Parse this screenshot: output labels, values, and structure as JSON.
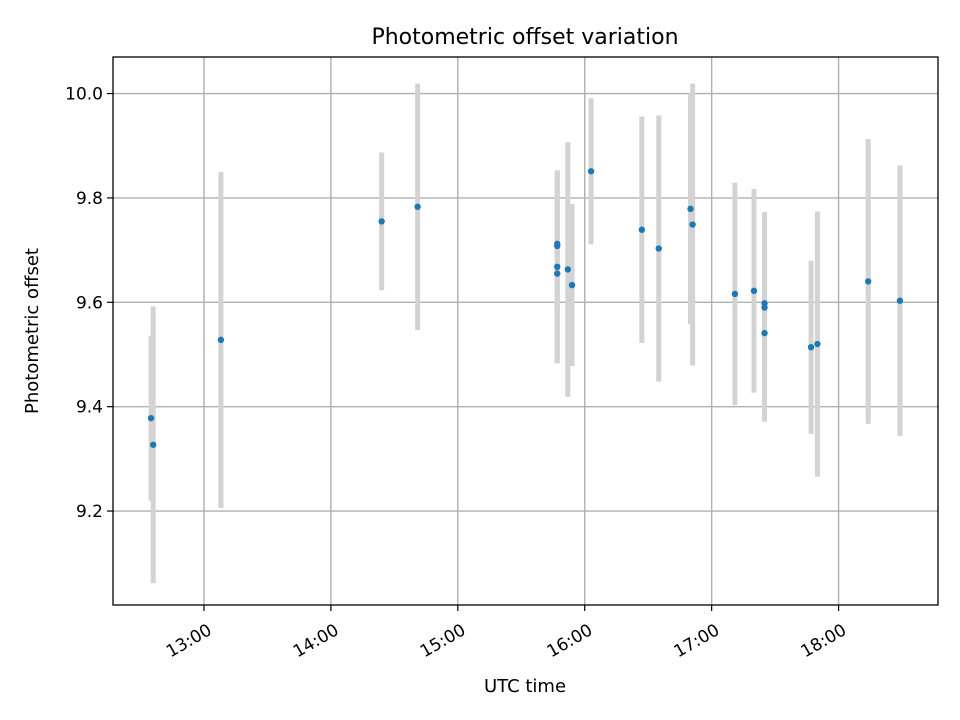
{
  "chart_data": {
    "type": "scatter",
    "title": "Photometric offset variation",
    "xlabel": "UTC time",
    "ylabel": "Photometric offset",
    "x_tick_labels": [
      "13:00",
      "14:00",
      "15:00",
      "16:00",
      "17:00",
      "18:00"
    ],
    "y_tick_labels": [
      "9.2",
      "9.4",
      "9.6",
      "9.8",
      "10.0"
    ],
    "xlim": [
      "12:17",
      "18:47"
    ],
    "ylim": [
      9.02,
      10.07
    ],
    "grid": true,
    "marker_color": "#1f77b4",
    "errorbar_color": "#d3d3d3",
    "points": [
      {
        "time": "12:35",
        "y": 9.378,
        "err": 0.158
      },
      {
        "time": "12:36",
        "y": 9.327,
        "err": 0.265
      },
      {
        "time": "13:08",
        "y": 9.528,
        "err": 0.322
      },
      {
        "time": "14:24",
        "y": 9.755,
        "err": 0.132
      },
      {
        "time": "14:41",
        "y": 9.783,
        "err": 0.236
      },
      {
        "time": "15:47",
        "y": 9.712,
        "err": 0.14
      },
      {
        "time": "15:47",
        "y": 9.708,
        "err": 0.1
      },
      {
        "time": "15:47",
        "y": 9.668,
        "err": 0.185
      },
      {
        "time": "15:47",
        "y": 9.655,
        "err": 0.17
      },
      {
        "time": "15:52",
        "y": 9.663,
        "err": 0.244
      },
      {
        "time": "15:54",
        "y": 9.633,
        "err": 0.155
      },
      {
        "time": "16:03",
        "y": 9.851,
        "err": 0.14
      },
      {
        "time": "16:27",
        "y": 9.739,
        "err": 0.217
      },
      {
        "time": "16:35",
        "y": 9.703,
        "err": 0.255
      },
      {
        "time": "16:50",
        "y": 9.779,
        "err": 0.221
      },
      {
        "time": "16:51",
        "y": 9.749,
        "err": 0.27
      },
      {
        "time": "17:11",
        "y": 9.616,
        "err": 0.213
      },
      {
        "time": "17:20",
        "y": 9.622,
        "err": 0.195
      },
      {
        "time": "17:25",
        "y": 9.598,
        "err": 0.175
      },
      {
        "time": "17:25",
        "y": 9.59,
        "err": 0.125
      },
      {
        "time": "17:25",
        "y": 9.541,
        "err": 0.17
      },
      {
        "time": "17:47",
        "y": 9.514,
        "err": 0.166
      },
      {
        "time": "17:50",
        "y": 9.52,
        "err": 0.254
      },
      {
        "time": "18:14",
        "y": 9.64,
        "err": 0.273
      },
      {
        "time": "18:29",
        "y": 9.603,
        "err": 0.259
      }
    ]
  }
}
